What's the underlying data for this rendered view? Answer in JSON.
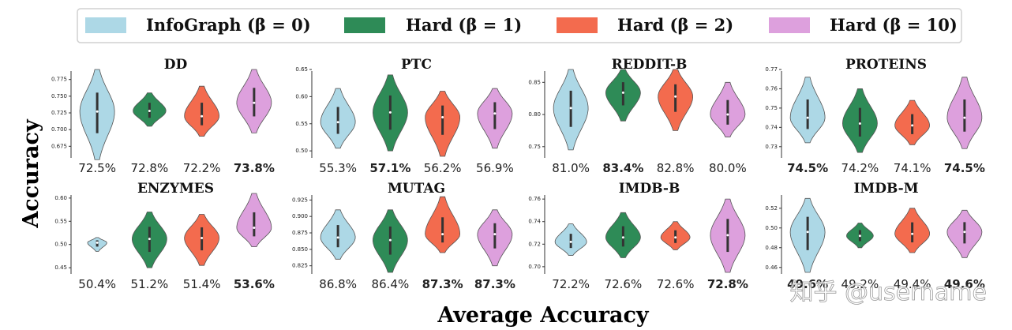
{
  "legend": [
    {
      "label": "InfoGraph (β = 0)",
      "color": "#add8e6"
    },
    {
      "label": "Hard (β = 1)",
      "color": "#2e8b57"
    },
    {
      "label": "Hard (β = 2)",
      "color": "#f36b4e"
    },
    {
      "label": "Hard (β = 10)",
      "color": "#dda0dd"
    }
  ],
  "ylabel": "Accuracy",
  "xlabel": "Average Accuracy",
  "watermark": "知乎 @username",
  "chart_data": [
    {
      "type": "violin",
      "title": "DD",
      "ylim": [
        0.66,
        0.79
      ],
      "yticks": [
        "0.775",
        "0.750",
        "0.725",
        "0.700",
        "0.675"
      ],
      "ytick_values": [
        0.775,
        0.75,
        0.725,
        0.7,
        0.675
      ],
      "medians": [
        0.727,
        0.728,
        0.72,
        0.74
      ],
      "spreads": [
        [
          0.655,
          0.79
        ],
        [
          0.705,
          0.755
        ],
        [
          0.69,
          0.765
        ],
        [
          0.695,
          0.79
        ]
      ],
      "avg_labels": [
        "72.5%",
        "72.8%",
        "72.2%",
        "73.8%"
      ],
      "bold": [
        false,
        false,
        false,
        true
      ]
    },
    {
      "type": "violin",
      "title": "PTC",
      "ylim": [
        0.49,
        0.65
      ],
      "yticks": [
        "0.65",
        "0.60",
        "0.55",
        "0.50"
      ],
      "ytick_values": [
        0.65,
        0.6,
        0.55,
        0.5
      ],
      "medians": [
        0.553,
        0.571,
        0.562,
        0.569
      ],
      "spreads": [
        [
          0.505,
          0.615
        ],
        [
          0.5,
          0.64
        ],
        [
          0.49,
          0.61
        ],
        [
          0.505,
          0.615
        ]
      ],
      "avg_labels": [
        "55.3%",
        "57.1%",
        "56.2%",
        "56.9%"
      ],
      "bold": [
        false,
        true,
        false,
        false
      ]
    },
    {
      "type": "violin",
      "title": "REDDIT-B",
      "ylim": [
        0.735,
        0.87
      ],
      "yticks": [
        "0.85",
        "0.80",
        "0.75"
      ],
      "ytick_values": [
        0.85,
        0.8,
        0.75
      ],
      "medians": [
        0.81,
        0.834,
        0.828,
        0.8
      ],
      "spreads": [
        [
          0.745,
          0.87
        ],
        [
          0.79,
          0.87
        ],
        [
          0.775,
          0.87
        ],
        [
          0.765,
          0.85
        ]
      ],
      "avg_labels": [
        "81.0%",
        "83.4%",
        "82.8%",
        "80.0%"
      ],
      "bold": [
        false,
        true,
        false,
        false
      ]
    },
    {
      "type": "violin",
      "title": "PROTEINS",
      "ylim": [
        0.725,
        0.77
      ],
      "yticks": [
        "0.77",
        "0.76",
        "0.75",
        "0.74",
        "0.73"
      ],
      "ytick_values": [
        0.77,
        0.76,
        0.75,
        0.74,
        0.73
      ],
      "medians": [
        0.745,
        0.742,
        0.741,
        0.745
      ],
      "spreads": [
        [
          0.732,
          0.766
        ],
        [
          0.727,
          0.76
        ],
        [
          0.731,
          0.754
        ],
        [
          0.729,
          0.766
        ]
      ],
      "avg_labels": [
        "74.5%",
        "74.2%",
        "74.1%",
        "74.5%"
      ],
      "bold": [
        true,
        false,
        false,
        true
      ]
    },
    {
      "type": "violin",
      "title": "ENZYMES",
      "ylim": [
        0.44,
        0.61
      ],
      "yticks": [
        "0.60",
        "0.55",
        "0.50",
        "0.45"
      ],
      "ytick_values": [
        0.6,
        0.55,
        0.5,
        0.45
      ],
      "medians": [
        0.504,
        0.512,
        0.514,
        0.536
      ],
      "spreads": [
        [
          0.485,
          0.515
        ],
        [
          0.45,
          0.57
        ],
        [
          0.455,
          0.565
        ],
        [
          0.495,
          0.61
        ]
      ],
      "avg_labels": [
        "50.4%",
        "51.2%",
        "51.4%",
        "53.6%"
      ],
      "bold": [
        false,
        false,
        false,
        true
      ]
    },
    {
      "type": "violin",
      "title": "MUTAG",
      "ylim": [
        0.815,
        0.935
      ],
      "yticks": [
        "0.925",
        "0.900",
        "0.875",
        "0.850",
        "0.825"
      ],
      "ytick_values": [
        0.925,
        0.9,
        0.875,
        0.85,
        0.825
      ],
      "medians": [
        0.868,
        0.864,
        0.873,
        0.873
      ],
      "spreads": [
        [
          0.835,
          0.91
        ],
        [
          0.815,
          0.91
        ],
        [
          0.845,
          0.93
        ],
        [
          0.825,
          0.91
        ]
      ],
      "avg_labels": [
        "86.8%",
        "86.4%",
        "87.3%",
        "87.3%"
      ],
      "bold": [
        false,
        false,
        true,
        true
      ]
    },
    {
      "type": "violin",
      "title": "IMDB-B",
      "ylim": [
        0.695,
        0.765
      ],
      "yticks": [
        "0.76",
        "0.74",
        "0.72",
        "0.70"
      ],
      "ytick_values": [
        0.76,
        0.74,
        0.72,
        0.7
      ],
      "medians": [
        0.722,
        0.726,
        0.726,
        0.728
      ],
      "spreads": [
        [
          0.71,
          0.738
        ],
        [
          0.708,
          0.748
        ],
        [
          0.715,
          0.74
        ],
        [
          0.695,
          0.76
        ]
      ],
      "avg_labels": [
        "72.2%",
        "72.6%",
        "72.6%",
        "72.8%"
      ],
      "bold": [
        false,
        false,
        false,
        true
      ]
    },
    {
      "type": "violin",
      "title": "IMDB-M",
      "ylim": [
        0.455,
        0.535
      ],
      "yticks": [
        "0.52",
        "0.50",
        "0.48",
        "0.46"
      ],
      "ytick_values": [
        0.52,
        0.5,
        0.48,
        0.46
      ],
      "medians": [
        0.496,
        0.492,
        0.494,
        0.496
      ],
      "spreads": [
        [
          0.455,
          0.53
        ],
        [
          0.48,
          0.505
        ],
        [
          0.475,
          0.52
        ],
        [
          0.47,
          0.518
        ]
      ],
      "avg_labels": [
        "49.6%",
        "49.2%",
        "49.4%",
        "49.6%"
      ],
      "bold": [
        true,
        false,
        false,
        true
      ]
    }
  ]
}
